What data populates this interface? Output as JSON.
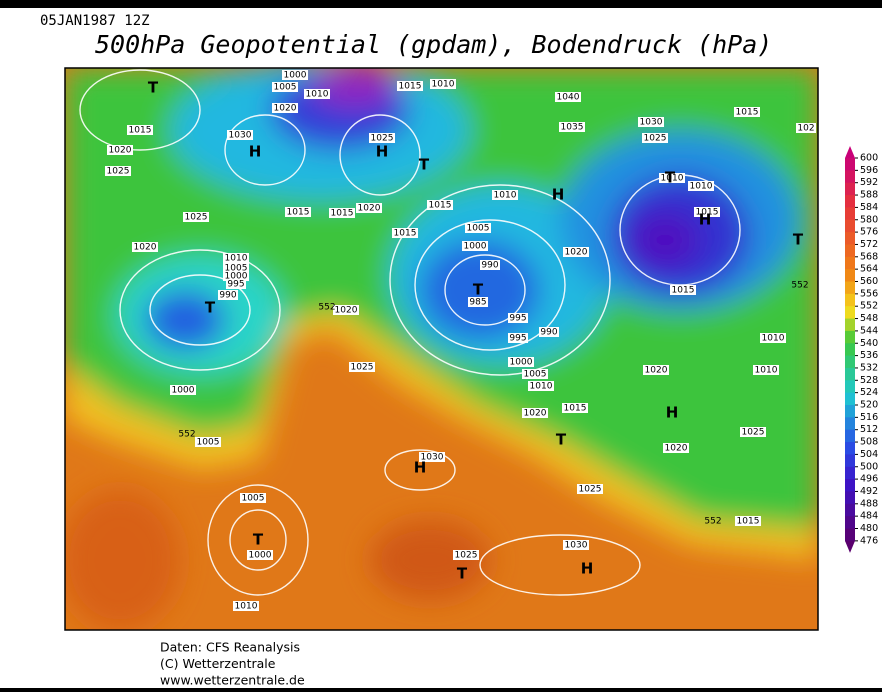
{
  "header": {
    "date": "05JAN1987 12Z",
    "title": "500hPa Geopotential (gpdam), Bodendruck (hPa)"
  },
  "map": {
    "pressure_labels": [
      1000,
      1005,
      1010,
      1020,
      1015,
      1010,
      1040,
      1035,
      1030,
      1025,
      1015,
      1030,
      1025,
      1015,
      1020,
      1025,
      1025,
      1015,
      1015,
      1020,
      1015,
      1015,
      1010,
      1005,
      1000,
      990,
      985,
      995,
      995,
      990,
      1020,
      1020,
      1010,
      1005,
      1000,
      995,
      990,
      1020,
      1025,
      1000,
      1005,
      1000,
      1005,
      1010,
      1020,
      1015,
      1010,
      1010,
      1015,
      1015,
      1010,
      1010,
      1020,
      1020,
      1025,
      1015,
      1030,
      1025,
      1005,
      1000,
      1010,
      1025,
      1030,
      102
    ],
    "centers": [
      "T",
      "H",
      "H",
      "T",
      "H",
      "T",
      "H",
      "T",
      "T",
      "T",
      "H",
      "T",
      "H",
      "T",
      "T",
      "H"
    ],
    "height_labels": [
      552,
      552,
      552,
      552
    ]
  },
  "legend": {
    "levels": [
      600,
      596,
      592,
      588,
      584,
      580,
      576,
      572,
      568,
      564,
      560,
      556,
      552,
      548,
      544,
      540,
      536,
      532,
      528,
      524,
      520,
      516,
      512,
      508,
      504,
      500,
      496,
      492,
      488,
      484,
      480,
      476
    ]
  },
  "footer": {
    "lines": [
      "Daten: CFS Reanalysis",
      "(C) Wetterzentrale",
      "www.wetterzentrale.de"
    ]
  }
}
